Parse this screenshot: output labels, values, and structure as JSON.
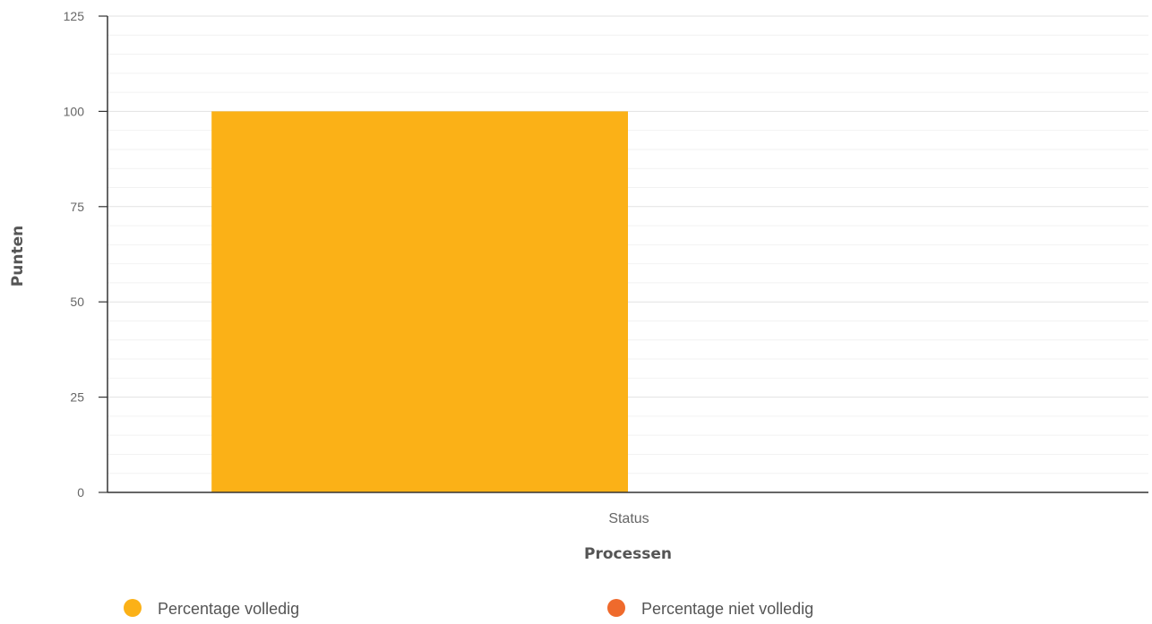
{
  "chart_data": {
    "type": "bar",
    "title": "",
    "xlabel": "Processen",
    "ylabel": "Punten",
    "categories": [
      "Status"
    ],
    "ylim": [
      0,
      125
    ],
    "yticks": [
      0,
      25,
      50,
      75,
      100,
      125
    ],
    "grid": true,
    "minor_grid": true,
    "legend_position": "bottom",
    "series": [
      {
        "name": "Percentage volledig",
        "color": "#FBB117",
        "values": [
          100
        ]
      },
      {
        "name": "Percentage niet volledig",
        "color": "#EF6A2C",
        "values": [
          0
        ]
      }
    ]
  }
}
